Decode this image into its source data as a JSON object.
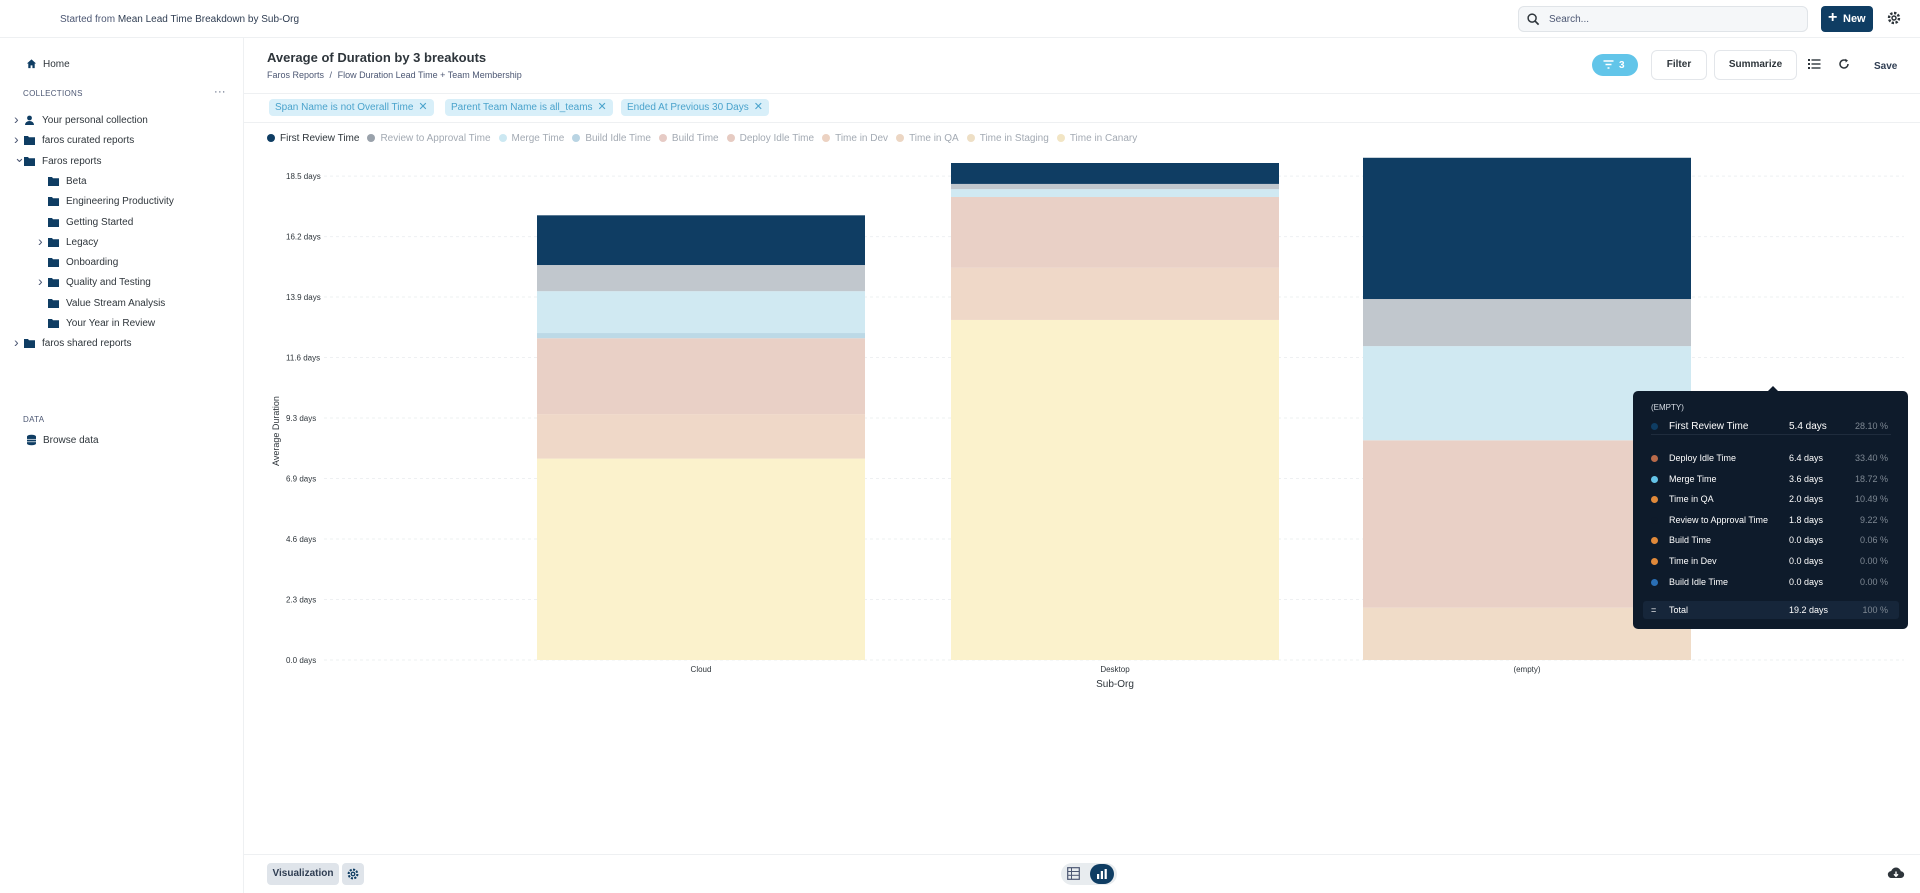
{
  "topbar": {
    "started_prefix": "Started from",
    "started_link": "Mean Lead Time Breakdown by Sub-Org",
    "search_placeholder": "Search...",
    "new_label": "New"
  },
  "sidebar": {
    "home": "Home",
    "collections_label": "COLLECTIONS",
    "more": "···",
    "items": [
      {
        "label": "Your personal collection",
        "icon": "person-icon",
        "chevron": "right"
      },
      {
        "label": "faros curated reports",
        "icon": "folder-icon",
        "chevron": "right"
      },
      {
        "label": "Faros reports",
        "icon": "folder-icon",
        "chevron": "down"
      },
      {
        "label": "Beta",
        "icon": "folder-icon",
        "chevron": ""
      },
      {
        "label": "Engineering Productivity",
        "icon": "folder-icon",
        "chevron": ""
      },
      {
        "label": "Getting Started",
        "icon": "folder-icon",
        "chevron": ""
      },
      {
        "label": "Legacy",
        "icon": "folder-icon",
        "chevron": "right"
      },
      {
        "label": "Onboarding",
        "icon": "folder-icon",
        "chevron": ""
      },
      {
        "label": "Quality and Testing",
        "icon": "folder-icon",
        "chevron": "right"
      },
      {
        "label": "Value Stream Analysis",
        "icon": "folder-icon",
        "chevron": ""
      },
      {
        "label": "Your Year in Review",
        "icon": "folder-icon",
        "chevron": ""
      },
      {
        "label": "faros shared reports",
        "icon": "folder-icon",
        "chevron": "right"
      }
    ],
    "data_label": "DATA",
    "browse_data": "Browse data"
  },
  "header": {
    "title": "Average of Duration by 3 breakouts",
    "breadcrumb_parent": "Faros Reports",
    "breadcrumb_sep": "/",
    "breadcrumb_child": "Flow Duration Lead Time + Team Membership",
    "filter_count": "3",
    "filter_label": "Filter",
    "summarize_label": "Summarize",
    "save_label": "Save"
  },
  "filters": [
    {
      "label": "Span Name is not Overall Time"
    },
    {
      "label": "Parent Team Name is all_teams"
    },
    {
      "label": "Ended At Previous 30 Days"
    }
  ],
  "colors": {
    "accent": "#62c5e9",
    "brand_dark": "#0f3d63",
    "filter_pill_bg": "#d8eff9",
    "filter_pill_text": "#4aa3cc"
  },
  "chart_data": {
    "type": "bar",
    "stacked": true,
    "title": "",
    "xlabel": "Sub-Org",
    "ylabel": "Average Duration",
    "categories": [
      "Cloud",
      "Desktop",
      "(empty)"
    ],
    "y_ticks": [
      "0.0 days",
      "2.3 days",
      "4.6 days",
      "6.9 days",
      "9.3 days",
      "11.6 days",
      "13.9 days",
      "16.2 days",
      "18.5 days"
    ],
    "ylim": [
      0,
      18.5
    ],
    "highlighted_series": "First Review Time",
    "series": [
      {
        "name": "First Review Time",
        "color": "#0f3d63",
        "values": [
          1.9,
          0.8,
          5.4
        ]
      },
      {
        "name": "Review to Approval Time",
        "color": "#c1c7cd",
        "values": [
          1.0,
          0.2,
          1.8
        ]
      },
      {
        "name": "Merge Time",
        "color": "#d0e9f2",
        "values": [
          1.6,
          0.3,
          3.6
        ]
      },
      {
        "name": "Build Idle Time",
        "color": "#bcd9e6",
        "values": [
          0.2,
          0.0,
          0.0
        ]
      },
      {
        "name": "Build Time",
        "color": "#ead3cd",
        "values": [
          0.0,
          0.0,
          0.0
        ]
      },
      {
        "name": "Deploy Idle Time",
        "color": "#e9d0c6",
        "values": [
          2.9,
          2.7,
          6.4
        ]
      },
      {
        "name": "Time in Dev",
        "color": "#efd8c8",
        "values": [
          1.7,
          2.0,
          0.0
        ]
      },
      {
        "name": "Time in QA",
        "color": "#f0dcc8",
        "values": [
          0.0,
          0.0,
          2.0
        ]
      },
      {
        "name": "Time in Staging",
        "color": "#f1e4cc",
        "values": [
          0.0,
          0.0,
          0.0
        ]
      },
      {
        "name": "Time in Canary",
        "color": "#fbf2cc",
        "values": [
          7.7,
          13.0,
          0.0
        ]
      }
    ]
  },
  "tooltip": {
    "header": "(EMPTY)",
    "first_row": {
      "name": "First Review Time",
      "value": "5.4 days",
      "pct": "28.10 %",
      "color": "#0f3d63"
    },
    "rows": [
      {
        "name": "Deploy Idle Time",
        "value": "6.4 days",
        "pct": "33.40 %",
        "color": "#b86a4a"
      },
      {
        "name": "Merge Time",
        "value": "3.6 days",
        "pct": "18.72 %",
        "color": "#64c3e7"
      },
      {
        "name": "Time in QA",
        "value": "2.0 days",
        "pct": "10.49 %",
        "color": "#e0893a"
      },
      {
        "name": "Review to Approval Time",
        "value": "1.8 days",
        "pct": "9.22 %",
        "color": "#0e1b2b"
      },
      {
        "name": "Build Time",
        "value": "0.0 days",
        "pct": "0.06 %",
        "color": "#e0893a"
      },
      {
        "name": "Time in Dev",
        "value": "0.0 days",
        "pct": "0.00 %",
        "color": "#e0893a"
      },
      {
        "name": "Build Idle Time",
        "value": "0.0 days",
        "pct": "0.00 %",
        "color": "#2a6fb5"
      }
    ],
    "total": {
      "symbol": "=",
      "name": "Total",
      "value": "19.2 days",
      "pct": "100 %"
    }
  },
  "bottombar": {
    "visualization_label": "Visualization"
  }
}
